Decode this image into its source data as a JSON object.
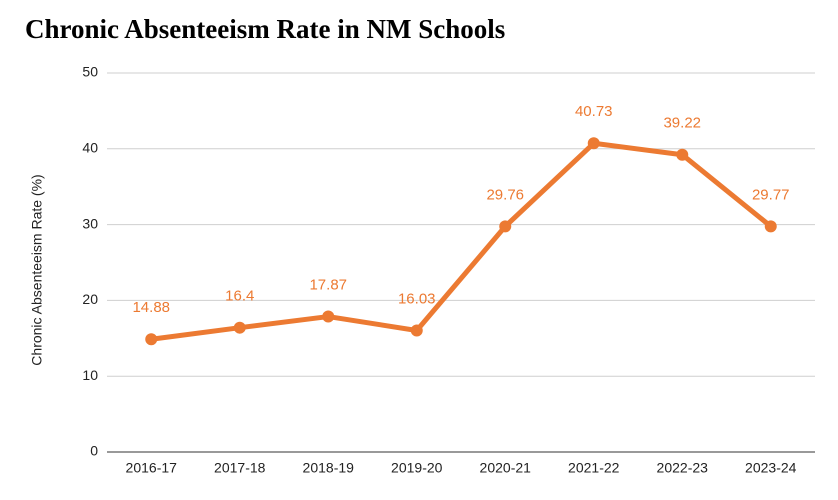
{
  "chart_data": {
    "type": "line",
    "title": "Chronic Absenteeism Rate in NM Schools",
    "y_label": "Chronic Absenteeism Rate (%)",
    "categories": [
      "2016-17",
      "2017-18",
      "2018-19",
      "2019-20",
      "2020-21",
      "2021-22",
      "2022-23",
      "2023-24"
    ],
    "values": [
      14.88,
      16.4,
      17.87,
      16.03,
      29.76,
      40.73,
      39.22,
      29.77
    ],
    "color": "#ec7a32",
    "ylim": [
      0,
      50
    ],
    "yticks": [
      0,
      10,
      20,
      30,
      40,
      50
    ],
    "grid": true,
    "data_labels": true
  }
}
